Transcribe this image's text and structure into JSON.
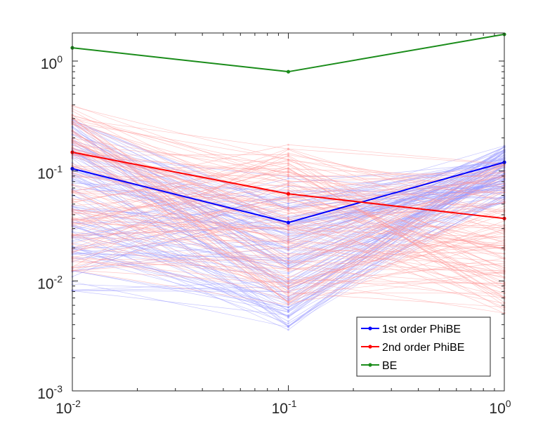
{
  "chart_data": {
    "type": "line",
    "x_scale": "log",
    "y_scale": "log",
    "x": [
      0.01,
      0.1,
      1
    ],
    "xlim": [
      0.01,
      1
    ],
    "ylim": [
      0.001,
      1.8
    ],
    "x_ticks": [
      {
        "base": "10",
        "exp": "-2"
      },
      {
        "base": "10",
        "exp": "-1"
      },
      {
        "base": "10",
        "exp": "0"
      }
    ],
    "y_ticks": [
      {
        "base": "10",
        "exp": "-3"
      },
      {
        "base": "10",
        "exp": "-2"
      },
      {
        "base": "10",
        "exp": "-1"
      },
      {
        "base": "10",
        "exp": "0"
      }
    ],
    "series": [
      {
        "name": "1st order PhiBE",
        "color": "#0000ff",
        "values": [
          0.105,
          0.034,
          0.12
        ]
      },
      {
        "name": "2nd order PhiBE",
        "color": "#ff0000",
        "values": [
          0.148,
          0.062,
          0.037
        ]
      },
      {
        "name": "BE",
        "color": "#1a8c1a",
        "values": [
          1.32,
          0.8,
          1.75
        ]
      }
    ],
    "background_runs": {
      "count_per_series": 120,
      "first_order_color": "#9999ff",
      "second_order_color": "#ff9999",
      "first_order_ranges": [
        [
          0.008,
          0.3
        ],
        [
          0.0035,
          0.09
        ],
        [
          0.05,
          0.17
        ]
      ],
      "second_order_ranges": [
        [
          0.012,
          0.4
        ],
        [
          0.006,
          0.18
        ],
        [
          0.005,
          0.13
        ]
      ]
    },
    "legend_position": "bottom-right",
    "grid": false,
    "title": "",
    "xlabel": "",
    "ylabel": ""
  }
}
